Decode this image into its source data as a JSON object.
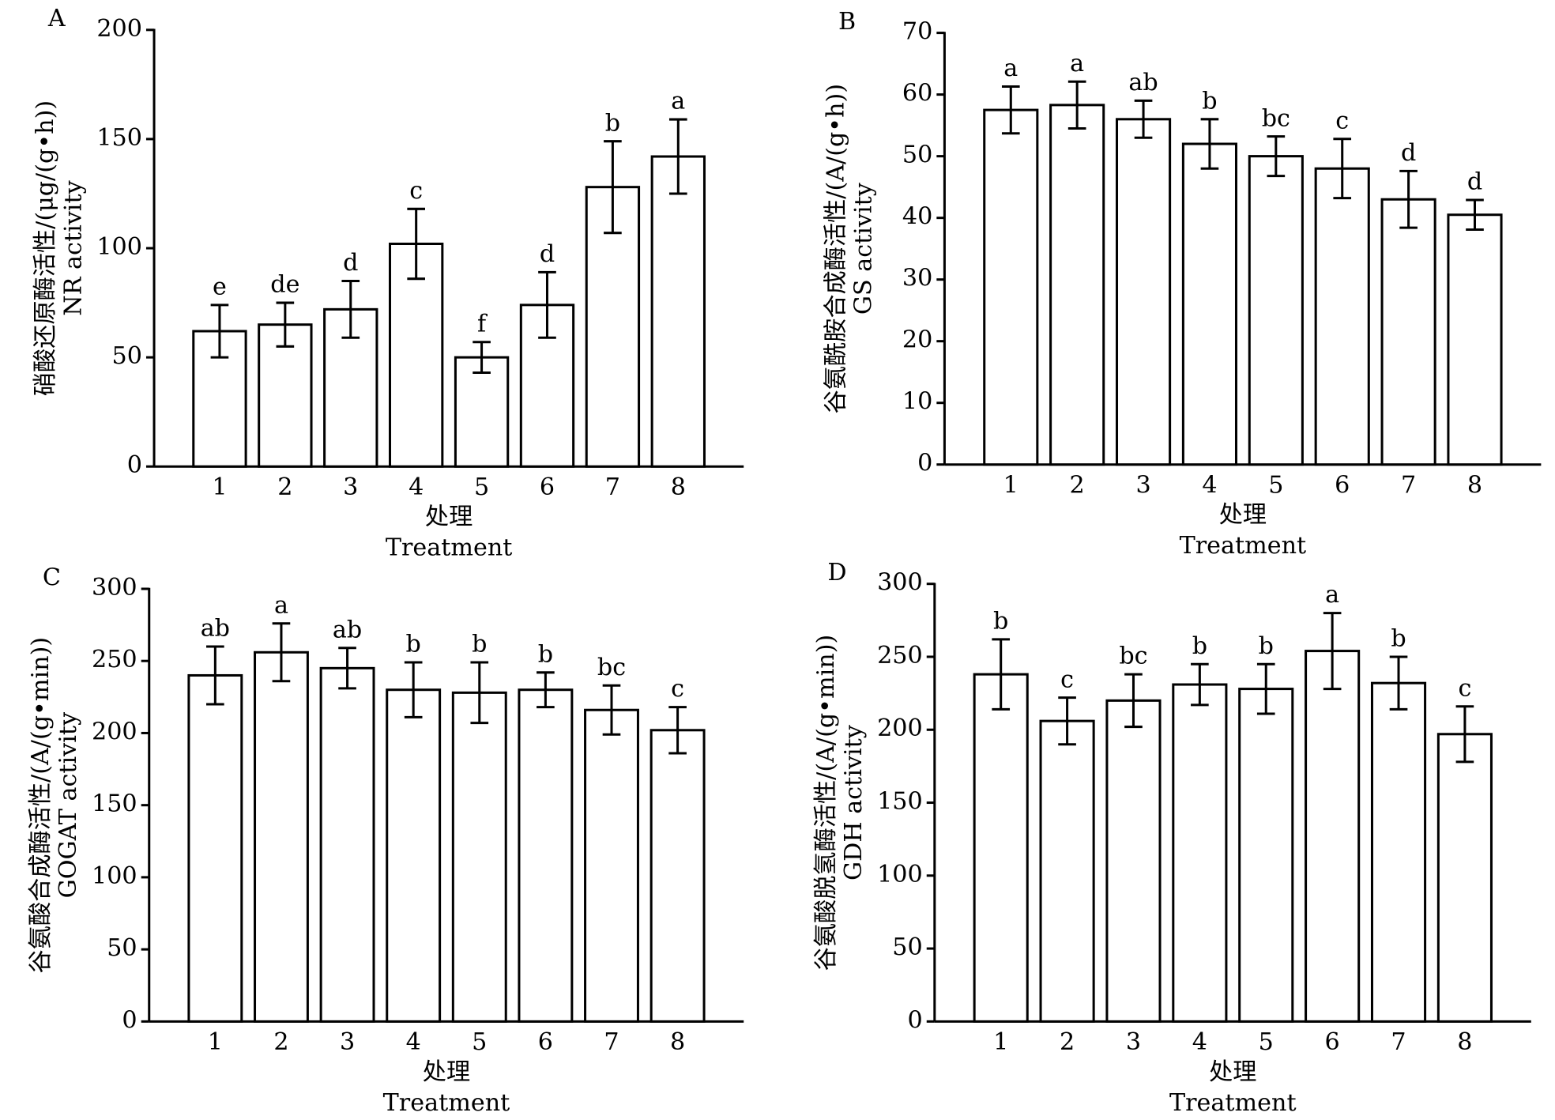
{
  "chart_data": [
    {
      "type": "bar",
      "panel": "A",
      "ylabel": "硝酸还原酶活性/(μg/(g•h))",
      "ylabel_en": "NR activity",
      "xlabel": "处理",
      "xlabel_en": "Treatment",
      "categories": [
        "1",
        "2",
        "3",
        "4",
        "5",
        "6",
        "7",
        "8"
      ],
      "values": [
        62,
        65,
        72,
        102,
        50,
        74,
        128,
        142
      ],
      "errors": [
        12,
        10,
        13,
        16,
        7,
        15,
        21,
        17
      ],
      "labels": [
        "e",
        "de",
        "d",
        "c",
        "f",
        "d",
        "b",
        "a"
      ],
      "ylim": [
        0,
        200
      ],
      "yticks": [
        0,
        50,
        100,
        150,
        200
      ],
      "color": "#ffffff"
    },
    {
      "type": "bar",
      "panel": "B",
      "ylabel": "谷氨酰胺合成酶活性/(A/(g•h))",
      "ylabel_en": "GS activity",
      "xlabel": "处理",
      "xlabel_en": "Treatment",
      "categories": [
        "1",
        "2",
        "3",
        "4",
        "5",
        "6",
        "7",
        "8"
      ],
      "values": [
        57.5,
        58.3,
        56,
        52,
        50,
        48,
        43,
        40.5
      ],
      "errors": [
        3.8,
        3.8,
        3,
        4,
        3.2,
        4.8,
        4.6,
        2.4
      ],
      "labels": [
        "a",
        "a",
        "ab",
        "b",
        "bc",
        "c",
        "d",
        "d"
      ],
      "ylim": [
        0,
        70
      ],
      "yticks": [
        0,
        10,
        20,
        30,
        40,
        50,
        60,
        70
      ],
      "color": "#ffffff"
    },
    {
      "type": "bar",
      "panel": "C",
      "ylabel": "谷氨酸合成酶活性/(A/(g•min))",
      "ylabel_en": "GOGAT activity",
      "xlabel": "处理",
      "xlabel_en": "Treatment",
      "categories": [
        "1",
        "2",
        "3",
        "4",
        "5",
        "6",
        "7",
        "8"
      ],
      "values": [
        240,
        256,
        245,
        230,
        228,
        230,
        216,
        202
      ],
      "errors": [
        20,
        20,
        14,
        19,
        21,
        12,
        17,
        16
      ],
      "labels": [
        "ab",
        "a",
        "ab",
        "b",
        "b",
        "b",
        "bc",
        "c"
      ],
      "ylim": [
        0,
        300
      ],
      "yticks": [
        0,
        50,
        100,
        150,
        200,
        250,
        300
      ],
      "color": "#ffffff"
    },
    {
      "type": "bar",
      "panel": "D",
      "ylabel": "谷氨酸脱氢酶活性/(A/(g•min))",
      "ylabel_en": "GDH activity",
      "xlabel": "处理",
      "xlabel_en": "Treatment",
      "categories": [
        "1",
        "2",
        "3",
        "4",
        "5",
        "6",
        "7",
        "8"
      ],
      "values": [
        238,
        206,
        220,
        231,
        228,
        254,
        232,
        197
      ],
      "errors": [
        24,
        16,
        18,
        14,
        17,
        26,
        18,
        19
      ],
      "labels": [
        "b",
        "c",
        "bc",
        "b",
        "b",
        "a",
        "b",
        "c"
      ],
      "ylim": [
        0,
        300
      ],
      "yticks": [
        0,
        50,
        100,
        150,
        200,
        250,
        300
      ],
      "color": "#ffffff"
    }
  ]
}
